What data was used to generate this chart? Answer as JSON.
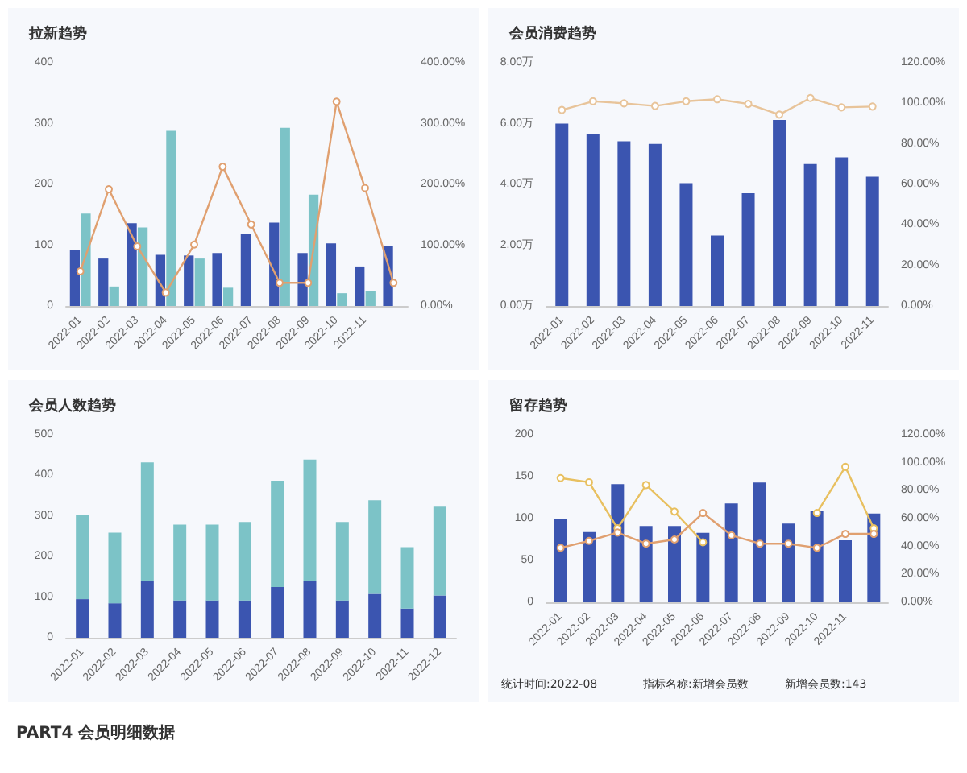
{
  "chart_data": [
    {
      "type": "bar",
      "title": "拉新趋势",
      "categories": [
        "2022-01",
        "2022-02",
        "2022-03",
        "2022-04",
        "2022-05",
        "2022-06",
        "2022-07",
        "2022-08",
        "2022-09",
        "2022-10",
        "2022-11",
        null
      ],
      "series": [
        {
          "color": "#3b55b0",
          "values": [
            92,
            78,
            136,
            84,
            83,
            87,
            119,
            137,
            87,
            103,
            65,
            98
          ]
        },
        {
          "color": "#7cc3c7",
          "values": [
            152,
            32,
            129,
            288,
            78,
            30,
            null,
            293,
            183,
            21,
            25,
            null
          ]
        },
        {
          "type": "line",
          "axis": "y2",
          "color": "#e0a070",
          "values": [
            57,
            192,
            98,
            22,
            101,
            229,
            134,
            38,
            38,
            336,
            194,
            38
          ]
        }
      ],
      "ylim": [
        0,
        400
      ],
      "yticks": [
        0,
        100,
        200,
        300,
        400
      ],
      "y2lim": [
        0,
        400
      ],
      "y2ticks": [
        {
          "value": 0,
          "label": "0.00%"
        },
        {
          "value": 100,
          "label": "100.00%"
        },
        {
          "value": 200,
          "label": "200.00%"
        },
        {
          "value": 300,
          "label": "300.00%"
        },
        {
          "value": 400,
          "label": "400.00%"
        }
      ],
      "grid": false,
      "marker": "circle"
    },
    {
      "type": "bar",
      "title": "会员消费趋势",
      "categories": [
        "2022-01",
        "2022-02",
        "2022-03",
        "2022-04",
        "2022-05",
        "2022-06",
        "2022-07",
        "2022-08",
        "2022-09",
        "2022-10",
        "2022-11"
      ],
      "series": [
        {
          "color": "#3b55b0",
          "values": [
            6.0,
            5.64,
            5.42,
            5.33,
            4.04,
            2.32,
            3.71,
            6.12,
            4.67,
            4.89,
            4.25
          ]
        },
        {
          "type": "line",
          "axis": "y2",
          "color": "#e8c49a",
          "values": [
            96.7,
            101,
            100,
            98.7,
            101,
            102,
            99.7,
            94.4,
            102.6,
            98,
            98.4
          ]
        }
      ],
      "ylim": [
        0,
        8
      ],
      "yticks": [
        {
          "value": 0,
          "label": "0.00万"
        },
        {
          "value": 2,
          "label": "2.00万"
        },
        {
          "value": 4,
          "label": "4.00万"
        },
        {
          "value": 6,
          "label": "6.00万"
        },
        {
          "value": 8,
          "label": "8.00万"
        }
      ],
      "y2lim": [
        0,
        120
      ],
      "y2ticks": [
        {
          "value": 0,
          "label": "0.00%"
        },
        {
          "value": 20,
          "label": "20.00%"
        },
        {
          "value": 40,
          "label": "40.00%"
        },
        {
          "value": 60,
          "label": "60.00%"
        },
        {
          "value": 80,
          "label": "80.00%"
        },
        {
          "value": 100,
          "label": "100.00%"
        },
        {
          "value": 120,
          "label": "120.00%"
        }
      ],
      "grid": false,
      "marker": "circle"
    },
    {
      "type": "bar",
      "title": "会员人数趋势",
      "stacked": true,
      "categories": [
        "2022-01",
        "2022-02",
        "2022-03",
        "2022-04",
        "2022-05",
        "2022-06",
        "2022-07",
        "2022-08",
        "2022-09",
        "2022-10",
        "2022-11",
        "2022-12"
      ],
      "series": [
        {
          "color": "#3b55b0",
          "values": [
            95,
            85,
            140,
            92,
            92,
            92,
            125,
            140,
            92,
            108,
            72,
            104
          ]
        },
        {
          "color": "#7cc3c7",
          "values": [
            207,
            174,
            292,
            187,
            187,
            193,
            262,
            299,
            193,
            231,
            151,
            219
          ]
        }
      ],
      "ylim": [
        0,
        500
      ],
      "yticks": [
        0,
        100,
        200,
        300,
        400,
        500
      ],
      "grid": false
    },
    {
      "type": "bar",
      "title": "留存趋势",
      "categories": [
        "2022-01",
        "2022-02",
        "2022-03",
        "2022-04",
        "2022-05",
        "2022-06",
        "2022-07",
        "2022-08",
        "2022-09",
        "2022-10",
        "2022-11",
        null
      ],
      "series": [
        {
          "color": "#3b55b0",
          "values": [
            100,
            84,
            141,
            91,
            91,
            83,
            118,
            143,
            94,
            109,
            74,
            106
          ]
        },
        {
          "type": "line",
          "axis": "y2",
          "color": "#e8c060",
          "values": [
            89,
            86,
            53,
            84,
            65,
            43,
            null,
            null,
            null,
            64,
            97,
            53
          ]
        },
        {
          "type": "line",
          "axis": "y2",
          "color": "#e0a070",
          "values": [
            39,
            44,
            50,
            42,
            45,
            64,
            48,
            42,
            42,
            39,
            49,
            49
          ]
        }
      ],
      "ylim": [
        0,
        200
      ],
      "yticks": [
        0,
        50,
        100,
        150,
        200
      ],
      "y2lim": [
        0,
        120
      ],
      "y2ticks": [
        {
          "value": 0,
          "label": "0.00%"
        },
        {
          "value": 20,
          "label": "20.00%"
        },
        {
          "value": 40,
          "label": "40.00%"
        },
        {
          "value": 60,
          "label": "60.00%"
        },
        {
          "value": 80,
          "label": "80.00%"
        },
        {
          "value": 100,
          "label": "100.00%"
        },
        {
          "value": 120,
          "label": "120.00%"
        }
      ],
      "grid": false,
      "marker": "circle",
      "annotations": [
        "统计时间:2022-08",
        "指标名称:新增会员数",
        "新增会员数:143",
        "PART4 会员明细数据"
      ]
    }
  ]
}
